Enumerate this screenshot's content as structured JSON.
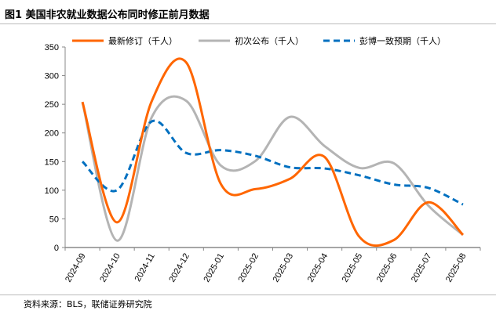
{
  "title": "图1  美国非农就业数据公布同时修正前月数据",
  "source": "资料来源：BLS，联储证券研究院",
  "chart_data": {
    "type": "line",
    "title": "美国非农就业数据公布同时修正前月数据",
    "xlabel": "",
    "ylabel": "",
    "ylim": [
      0,
      350
    ],
    "yticks": [
      0,
      50,
      100,
      150,
      200,
      250,
      300,
      350
    ],
    "categories": [
      "2024-09",
      "2024-10",
      "2024-11",
      "2024-12",
      "2025-01",
      "2025-02",
      "2025-03",
      "2025-04",
      "2025-05",
      "2025-06",
      "2025-07",
      "2025-08"
    ],
    "legend_position": "top",
    "grid": false,
    "series": [
      {
        "name": "最新修订（千人）",
        "color": "#ff6600",
        "style": "solid",
        "values": [
          254,
          44,
          255,
          323,
          111,
          102,
          120,
          158,
          19,
          13,
          79,
          22
        ]
      },
      {
        "name": "初次公布（千人）",
        "color": "#b4b4b4",
        "style": "solid",
        "values": [
          254,
          12,
          227,
          256,
          143,
          151,
          228,
          177,
          139,
          147,
          73,
          22
        ]
      },
      {
        "name": "彭博一致预期（千人）",
        "color": "#0070c0",
        "style": "dashed",
        "values": [
          150,
          100,
          220,
          165,
          170,
          160,
          140,
          138,
          126,
          110,
          104,
          75
        ]
      }
    ]
  }
}
